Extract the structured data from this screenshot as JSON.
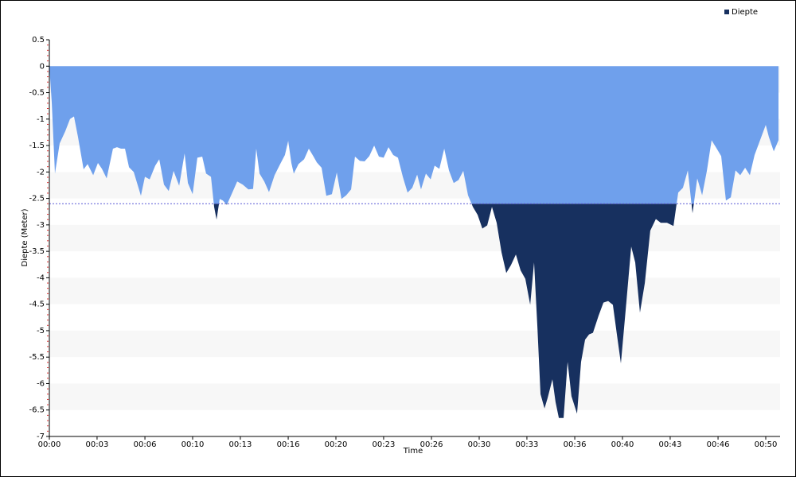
{
  "chart_data": {
    "type": "area",
    "y_label": "Diepte (Meter)",
    "x_label": "Time",
    "legend": "top-right",
    "grid": true,
    "threshold": -2.6,
    "threshold_color": "#5b5bd6",
    "below_color": "#17305f",
    "xlim": [
      0,
      51
    ],
    "ylim": [
      -7,
      0.5
    ],
    "xticks": [
      {
        "value": 0,
        "label": "00:00"
      },
      {
        "value": 3.33,
        "label": "00:03"
      },
      {
        "value": 6.67,
        "label": "00:06"
      },
      {
        "value": 10,
        "label": "00:10"
      },
      {
        "value": 13.33,
        "label": "00:13"
      },
      {
        "value": 16.67,
        "label": "00:16"
      },
      {
        "value": 20,
        "label": "00:20"
      },
      {
        "value": 23.33,
        "label": "00:23"
      },
      {
        "value": 26.67,
        "label": "00:26"
      },
      {
        "value": 30,
        "label": "00:30"
      },
      {
        "value": 33.33,
        "label": "00:33"
      },
      {
        "value": 36.67,
        "label": "00:36"
      },
      {
        "value": 40,
        "label": "00:40"
      },
      {
        "value": 43.33,
        "label": "00:43"
      },
      {
        "value": 46.67,
        "label": "00:46"
      },
      {
        "value": 50,
        "label": "00:50"
      }
    ],
    "yticks": [
      0.5,
      0,
      -0.5,
      -1,
      -1.5,
      -2,
      -2.5,
      -3,
      -3.5,
      -4,
      -4.5,
      -5,
      -5.5,
      -6,
      -6.5,
      -7
    ],
    "x": [
      0,
      0.17,
      0.39,
      0.72,
      1.11,
      1.44,
      1.72,
      2.0,
      2.39,
      2.67,
      3.06,
      3.39,
      3.67,
      4.0,
      4.44,
      4.72,
      5.0,
      5.28,
      5.56,
      5.89,
      6.39,
      6.67,
      7.0,
      7.39,
      7.67,
      8.0,
      8.33,
      8.67,
      9.06,
      9.44,
      9.67,
      10.0,
      10.33,
      10.67,
      10.94,
      11.28,
      11.5,
      11.67,
      11.89,
      12.11,
      12.39,
      12.72,
      13.11,
      13.5,
      13.89,
      14.22,
      14.44,
      14.67,
      15.0,
      15.33,
      15.72,
      16.11,
      16.44,
      16.67,
      16.89,
      17.06,
      17.39,
      17.78,
      18.11,
      18.44,
      18.67,
      19.0,
      19.33,
      19.72,
      20.06,
      20.39,
      20.72,
      21.06,
      21.33,
      21.67,
      22.0,
      22.33,
      22.67,
      23.0,
      23.33,
      23.67,
      24.0,
      24.33,
      24.67,
      25.0,
      25.33,
      25.67,
      25.94,
      26.28,
      26.61,
      26.89,
      27.22,
      27.56,
      27.89,
      28.22,
      28.56,
      28.89,
      29.22,
      29.56,
      29.89,
      30.22,
      30.56,
      30.89,
      31.22,
      31.56,
      31.89,
      32.22,
      32.56,
      32.89,
      33.22,
      33.56,
      33.83,
      34.06,
      34.28,
      34.56,
      34.78,
      35.11,
      35.33,
      35.56,
      35.89,
      36.17,
      36.44,
      36.83,
      37.11,
      37.39,
      37.67,
      37.94,
      38.33,
      38.67,
      39.0,
      39.33,
      39.61,
      39.89,
      40.22,
      40.61,
      40.89,
      41.22,
      41.56,
      41.94,
      42.33,
      42.67,
      43.11,
      43.56,
      43.89,
      44.22,
      44.56,
      44.89,
      45.22,
      45.56,
      45.89,
      46.22,
      46.56,
      46.89,
      47.22,
      47.56,
      47.89,
      48.22,
      48.56,
      48.89,
      49.22,
      49.67,
      50.0,
      50.22,
      50.56,
      50.89
    ],
    "series": [
      {
        "name": "Diepte",
        "color": "#6fa0ec",
        "values": [
          0,
          -0.7,
          -2.03,
          -1.46,
          -1.23,
          -1.0,
          -0.95,
          -1.34,
          -1.95,
          -1.85,
          -2.06,
          -1.83,
          -1.94,
          -2.12,
          -1.56,
          -1.53,
          -1.56,
          -1.56,
          -1.91,
          -2.0,
          -2.45,
          -2.09,
          -2.14,
          -1.88,
          -1.76,
          -2.24,
          -2.36,
          -1.98,
          -2.26,
          -1.65,
          -2.21,
          -2.42,
          -1.73,
          -1.71,
          -2.03,
          -2.09,
          -2.66,
          -2.9,
          -2.51,
          -2.54,
          -2.62,
          -2.42,
          -2.18,
          -2.24,
          -2.33,
          -2.32,
          -1.56,
          -2.03,
          -2.18,
          -2.38,
          -2.06,
          -1.85,
          -1.68,
          -1.41,
          -1.83,
          -2.03,
          -1.85,
          -1.76,
          -1.56,
          -1.71,
          -1.82,
          -1.92,
          -2.45,
          -2.42,
          -2.01,
          -2.51,
          -2.44,
          -2.33,
          -1.71,
          -1.79,
          -1.8,
          -1.7,
          -1.5,
          -1.71,
          -1.73,
          -1.53,
          -1.68,
          -1.73,
          -2.09,
          -2.39,
          -2.3,
          -2.05,
          -2.33,
          -2.03,
          -2.14,
          -1.88,
          -1.94,
          -1.56,
          -1.97,
          -2.21,
          -2.15,
          -1.98,
          -2.44,
          -2.66,
          -2.81,
          -3.07,
          -3.01,
          -2.66,
          -2.96,
          -3.52,
          -3.91,
          -3.76,
          -3.56,
          -3.86,
          -4.02,
          -4.51,
          -3.71,
          -4.92,
          -6.2,
          -6.47,
          -6.27,
          -5.92,
          -6.35,
          -6.65,
          -6.65,
          -5.59,
          -6.24,
          -6.57,
          -5.59,
          -5.17,
          -5.07,
          -5.04,
          -4.72,
          -4.47,
          -4.44,
          -4.51,
          -5.07,
          -5.62,
          -4.62,
          -3.41,
          -3.71,
          -4.66,
          -4.1,
          -3.11,
          -2.89,
          -2.96,
          -2.96,
          -3.02,
          -2.39,
          -2.3,
          -1.97,
          -2.78,
          -2.12,
          -2.44,
          -1.98,
          -1.4,
          -1.55,
          -1.7,
          -2.54,
          -2.48,
          -1.97,
          -2.06,
          -1.92,
          -2.06,
          -1.68,
          -1.35,
          -1.11,
          -1.34,
          -1.61,
          -1.4
        ]
      }
    ]
  }
}
